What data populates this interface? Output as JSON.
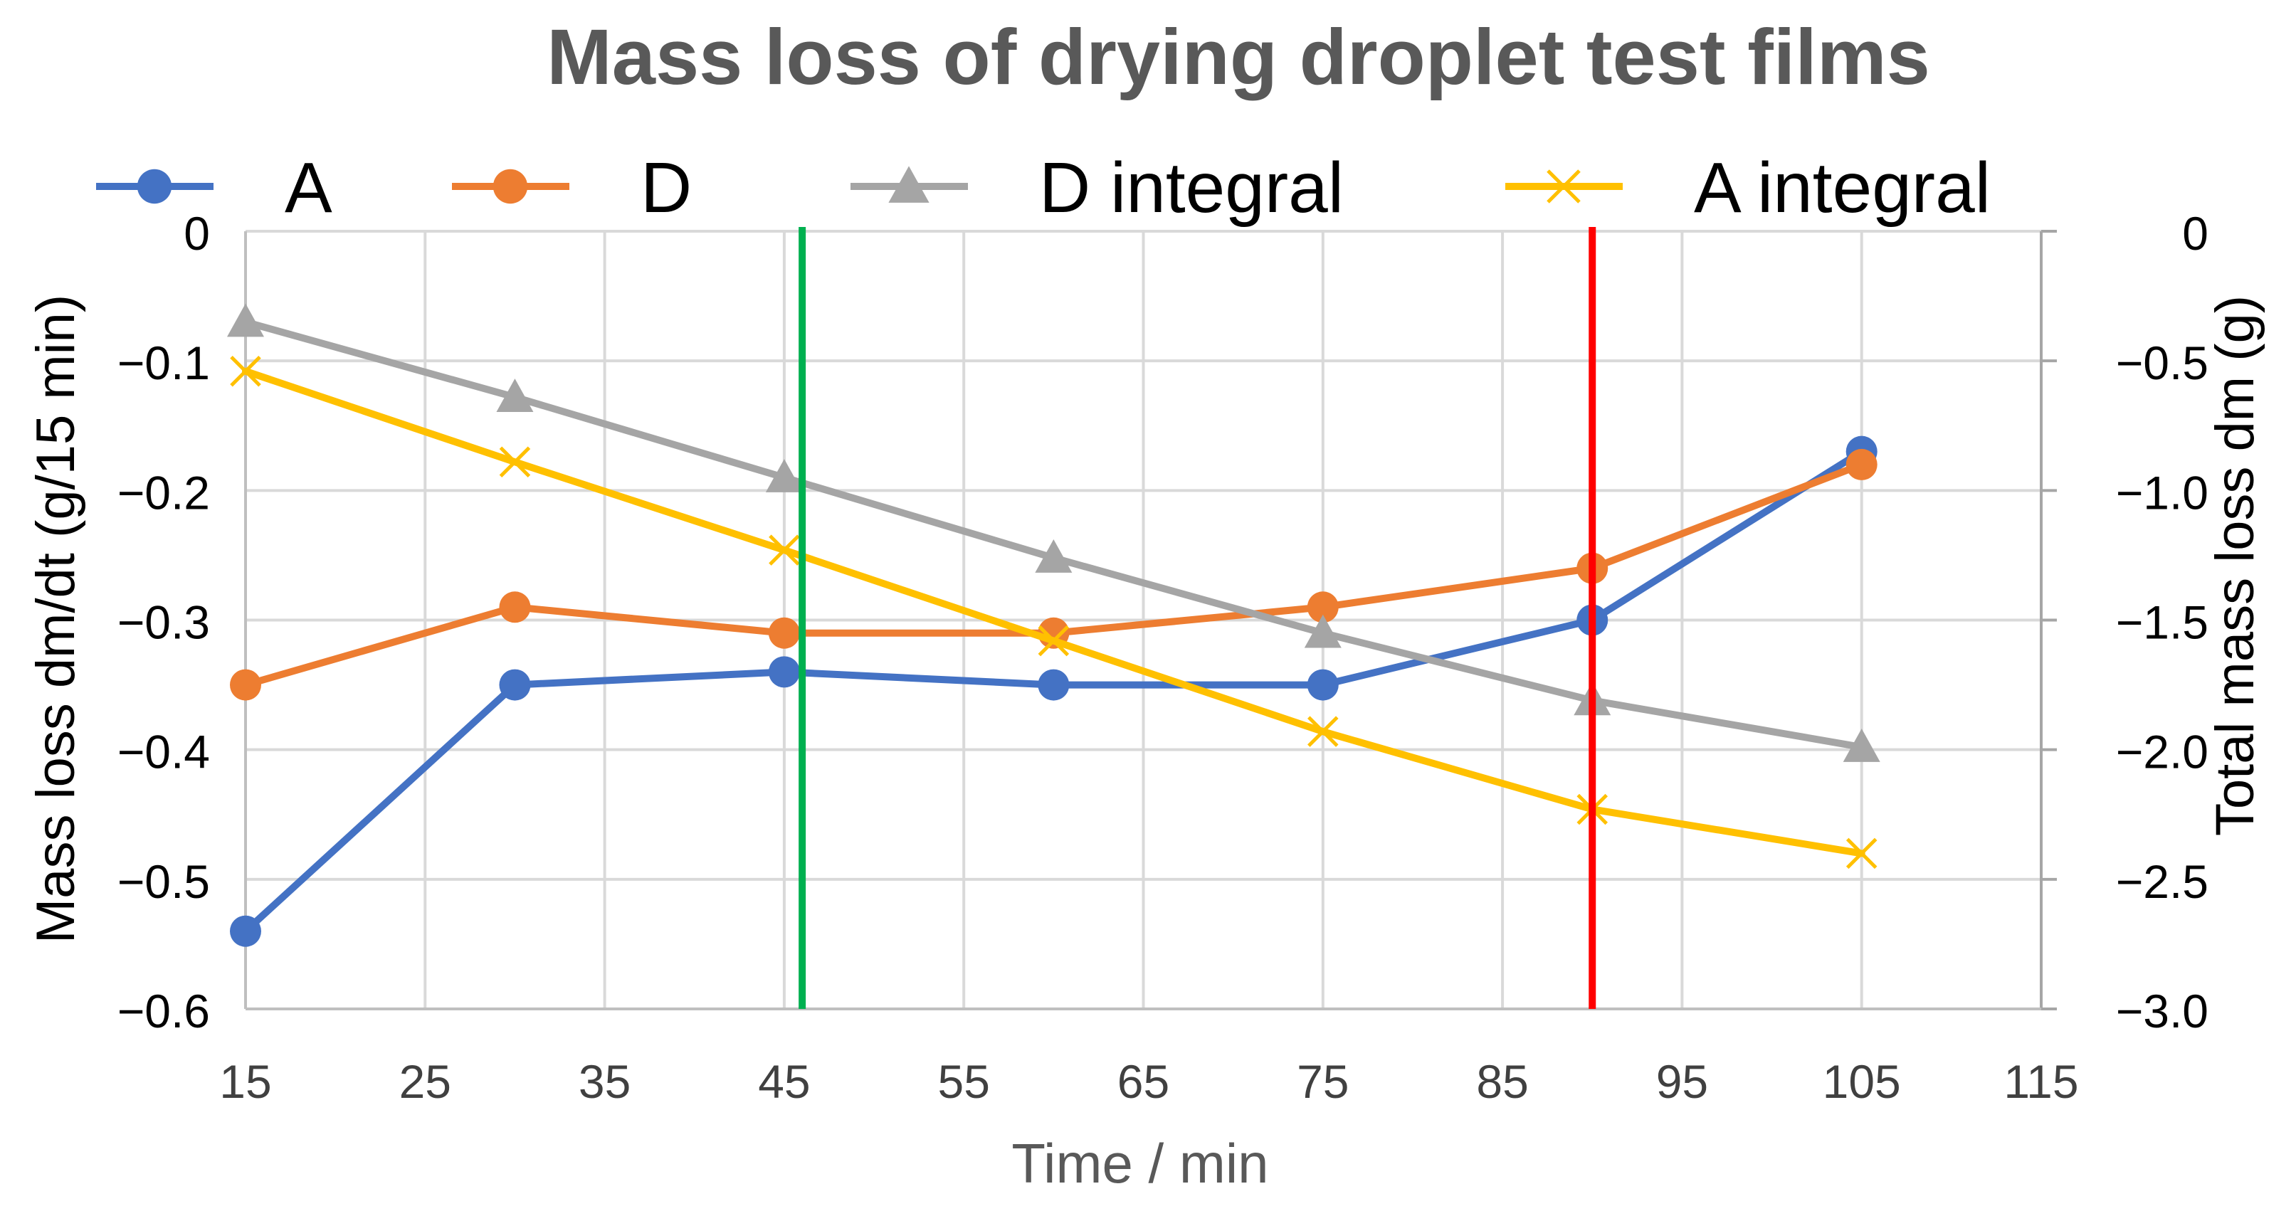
{
  "chart_data": {
    "type": "line",
    "title": "Mass loss of drying droplet test films",
    "xlabel": "Time / min",
    "ylabel": "Mass loss dm/dt (g/15 min)",
    "y2label": "Total mass loss dm (g)",
    "xlim": [
      15,
      115
    ],
    "xticks": [
      15,
      25,
      35,
      45,
      55,
      65,
      75,
      85,
      95,
      105,
      115
    ],
    "ylim": [
      -0.6,
      0
    ],
    "yticks": [
      0,
      -0.1,
      -0.2,
      -0.3,
      -0.4,
      -0.5,
      -0.6
    ],
    "ytick_labels": [
      "0",
      "−0.1",
      "−0.2",
      "−0.3",
      "−0.4",
      "−0.5",
      "−0.6"
    ],
    "y2lim": [
      -3.0,
      0
    ],
    "y2ticks": [
      0,
      -0.5,
      -1.0,
      -1.5,
      -2.0,
      -2.5,
      -3.0
    ],
    "y2tick_labels": [
      "0",
      "−0.5",
      "−1.0",
      "−1.5",
      "−2.0",
      "−2.5",
      "−3.0"
    ],
    "grid": true,
    "legend_position": "top",
    "x": [
      15,
      30,
      45,
      60,
      75,
      90,
      105
    ],
    "series": [
      {
        "name": "A",
        "axis": "left",
        "marker": "circle",
        "color": "#4472C4",
        "values": [
          -0.54,
          -0.35,
          -0.34,
          -0.35,
          -0.35,
          -0.3,
          -0.17
        ]
      },
      {
        "name": "D",
        "axis": "left",
        "marker": "circle",
        "color": "#ED7D31",
        "values": [
          -0.35,
          -0.29,
          -0.31,
          -0.31,
          -0.29,
          -0.26,
          -0.18
        ]
      },
      {
        "name": "D integral",
        "axis": "right",
        "marker": "triangle",
        "color": "#A5A5A5",
        "values": [
          -0.35,
          -0.64,
          -0.95,
          -1.26,
          -1.55,
          -1.81,
          -1.99
        ]
      },
      {
        "name": "A integral",
        "axis": "right",
        "marker": "x",
        "color": "#FFC000",
        "values": [
          -0.54,
          -0.89,
          -1.23,
          -1.58,
          -1.93,
          -2.23,
          -2.4
        ]
      }
    ],
    "vlines": [
      {
        "x": 46,
        "color": "#00B050"
      },
      {
        "x": 90,
        "color": "#FF0000"
      }
    ]
  }
}
